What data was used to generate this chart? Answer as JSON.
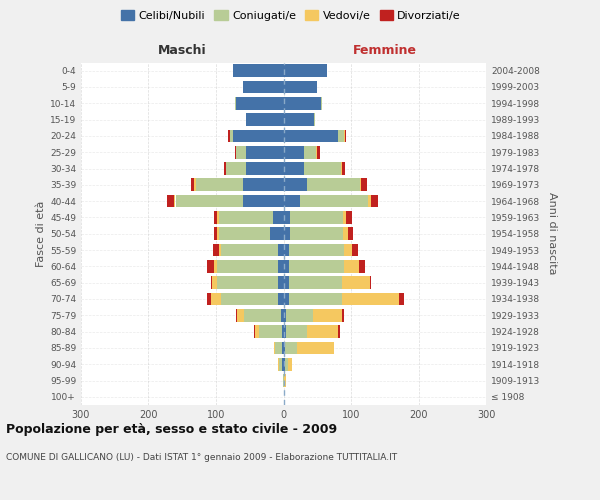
{
  "age_groups": [
    "100+",
    "95-99",
    "90-94",
    "85-89",
    "80-84",
    "75-79",
    "70-74",
    "65-69",
    "60-64",
    "55-59",
    "50-54",
    "45-49",
    "40-44",
    "35-39",
    "30-34",
    "25-29",
    "20-24",
    "15-19",
    "10-14",
    "5-9",
    "0-4"
  ],
  "birth_years": [
    "≤ 1908",
    "1909-1913",
    "1914-1918",
    "1919-1923",
    "1924-1928",
    "1929-1933",
    "1934-1938",
    "1939-1943",
    "1944-1948",
    "1949-1953",
    "1954-1958",
    "1959-1963",
    "1964-1968",
    "1969-1973",
    "1974-1978",
    "1979-1983",
    "1984-1988",
    "1989-1993",
    "1994-1998",
    "1999-2003",
    "2004-2008"
  ],
  "males": {
    "celibi": [
      0,
      0,
      2,
      2,
      2,
      4,
      8,
      8,
      8,
      8,
      20,
      15,
      60,
      60,
      55,
      55,
      75,
      55,
      70,
      60,
      75
    ],
    "coniugati": [
      0,
      1,
      5,
      10,
      35,
      55,
      85,
      90,
      90,
      85,
      75,
      80,
      100,
      70,
      30,
      15,
      5,
      1,
      2,
      0,
      0
    ],
    "vedovi": [
      0,
      0,
      1,
      2,
      5,
      10,
      15,
      8,
      5,
      3,
      3,
      3,
      2,
      2,
      0,
      0,
      0,
      0,
      0,
      0,
      0
    ],
    "divorziati": [
      0,
      0,
      0,
      0,
      2,
      2,
      5,
      2,
      10,
      8,
      5,
      5,
      10,
      5,
      3,
      2,
      2,
      0,
      0,
      0,
      0
    ]
  },
  "females": {
    "nubili": [
      0,
      0,
      2,
      2,
      3,
      3,
      8,
      8,
      8,
      8,
      10,
      10,
      25,
      35,
      30,
      30,
      80,
      45,
      55,
      50,
      65
    ],
    "coniugate": [
      0,
      1,
      5,
      18,
      32,
      40,
      78,
      78,
      82,
      82,
      78,
      78,
      100,
      78,
      55,
      18,
      10,
      2,
      2,
      0,
      0
    ],
    "vedove": [
      0,
      2,
      5,
      55,
      45,
      43,
      85,
      42,
      22,
      12,
      7,
      5,
      5,
      2,
      1,
      1,
      1,
      0,
      0,
      0,
      0
    ],
    "divorziate": [
      0,
      0,
      0,
      0,
      3,
      3,
      8,
      2,
      8,
      8,
      8,
      8,
      10,
      8,
      5,
      5,
      2,
      0,
      0,
      0,
      0
    ]
  },
  "colors": {
    "celibi": "#4472a8",
    "coniugati": "#b8cc96",
    "vedovi": "#f5c860",
    "divorziati": "#c0211f"
  },
  "title": "Popolazione per età, sesso e stato civile - 2009",
  "subtitle": "COMUNE DI GALLICANO (LU) - Dati ISTAT 1° gennaio 2009 - Elaborazione TUTTITALIA.IT",
  "xlabel_left": "Maschi",
  "xlabel_right": "Femmine",
  "ylabel_left": "Fasce di età",
  "ylabel_right": "Anni di nascita",
  "xlim": 300,
  "bg_color": "#f0f0f0",
  "plot_bg": "#ffffff",
  "grid_color": "#cccccc"
}
